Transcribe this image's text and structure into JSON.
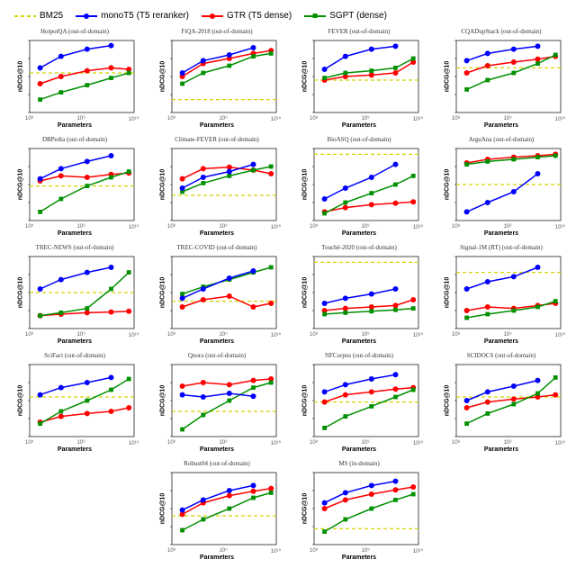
{
  "legend": [
    {
      "label": "BM25",
      "color": "#d4d400",
      "style": "dashed",
      "marker": false
    },
    {
      "label": "monoT5 (T5 reranker)",
      "color": "#0000ff",
      "style": "solid",
      "marker": true
    },
    {
      "label": "GTR (T5 dense)",
      "color": "#ff0000",
      "style": "solid",
      "marker": true
    },
    {
      "label": "SGPT (dense)",
      "color": "#009000",
      "style": "solid",
      "marker": "square"
    }
  ],
  "global": {
    "ylabel": "nDCG@10",
    "xlabel": "Parameters",
    "xticks": [
      "10⁸",
      "10⁹",
      "10¹⁰"
    ],
    "background": "#ffffff",
    "grid_color": "#e0e0e0",
    "line_width": 1.5,
    "marker_size": 3
  },
  "colors": {
    "bm25": "#d4d400",
    "monoT5": "#0000ff",
    "gtr": "#ff0000",
    "sgpt": "#009000"
  },
  "x_values": [
    0.1,
    0.3,
    0.55,
    0.78,
    0.95
  ],
  "panels": [
    {
      "title": "HotpotQA (out-of-domain)",
      "bm25_y": 0.55,
      "series": {
        "monoT5": [
          0.62,
          0.78,
          0.88,
          0.93,
          null
        ],
        "gtr": [
          0.4,
          0.5,
          0.58,
          0.62,
          0.6
        ],
        "sgpt": [
          0.18,
          0.28,
          0.38,
          0.48,
          0.55
        ]
      }
    },
    {
      "title": "FiQA-2018 (out-of-domain)",
      "bm25_y": 0.18,
      "series": {
        "monoT5": [
          0.55,
          0.72,
          0.8,
          0.9,
          null
        ],
        "gtr": [
          0.5,
          0.68,
          0.75,
          0.82,
          0.86
        ],
        "sgpt": [
          0.4,
          0.55,
          0.65,
          0.78,
          0.82
        ]
      }
    },
    {
      "title": "FEVER (out-of-domain)",
      "bm25_y": 0.45,
      "series": {
        "monoT5": [
          0.6,
          0.78,
          0.88,
          0.92,
          null
        ],
        "gtr": [
          0.45,
          0.5,
          0.52,
          0.55,
          0.7
        ],
        "sgpt": [
          0.48,
          0.55,
          0.58,
          0.62,
          0.75
        ]
      }
    },
    {
      "title": "CQADupStack (out-of-domain)",
      "bm25_y": 0.62,
      "series": {
        "monoT5": [
          0.72,
          0.82,
          0.88,
          0.92,
          null
        ],
        "gtr": [
          0.55,
          0.65,
          0.7,
          0.74,
          0.78
        ],
        "sgpt": [
          0.32,
          0.45,
          0.55,
          0.68,
          0.8
        ]
      }
    },
    {
      "title": "DBPedia (out-of-domain)",
      "bm25_y": 0.48,
      "series": {
        "monoT5": [
          0.58,
          0.72,
          0.82,
          0.9,
          null
        ],
        "gtr": [
          0.55,
          0.62,
          0.6,
          0.64,
          0.66
        ],
        "sgpt": [
          0.12,
          0.3,
          0.48,
          0.6,
          0.68
        ]
      }
    },
    {
      "title": "Climate-FEVER (out-of-domain)",
      "bm25_y": 0.35,
      "series": {
        "monoT5": [
          0.45,
          0.6,
          0.68,
          0.78,
          null
        ],
        "gtr": [
          0.58,
          0.72,
          0.74,
          0.7,
          0.65
        ],
        "sgpt": [
          0.4,
          0.52,
          0.62,
          0.7,
          0.75
        ]
      }
    },
    {
      "title": "BioASQ (out-of-domain)",
      "bm25_y": 0.92,
      "series": {
        "monoT5": [
          0.3,
          0.45,
          0.6,
          0.78,
          null
        ],
        "gtr": [
          0.12,
          0.18,
          0.22,
          0.24,
          0.26
        ],
        "sgpt": [
          0.1,
          0.25,
          0.38,
          0.5,
          0.62
        ]
      }
    },
    {
      "title": "ArguAna (out-of-domain)",
      "bm25_y": 0.5,
      "series": {
        "monoT5": [
          0.12,
          0.25,
          0.4,
          0.65,
          null
        ],
        "gtr": [
          0.8,
          0.85,
          0.88,
          0.9,
          0.92
        ],
        "sgpt": [
          0.78,
          0.82,
          0.85,
          0.88,
          0.9
        ]
      }
    },
    {
      "title": "TREC-NEWS (out-of-domain)",
      "bm25_y": 0.5,
      "series": {
        "monoT5": [
          0.55,
          0.68,
          0.78,
          0.85,
          null
        ],
        "gtr": [
          0.18,
          0.2,
          0.22,
          0.23,
          0.24
        ],
        "sgpt": [
          0.18,
          0.22,
          0.28,
          0.55,
          0.78
        ]
      }
    },
    {
      "title": "TREC-COVID (out-of-domain)",
      "bm25_y": 0.38,
      "series": {
        "monoT5": [
          0.42,
          0.55,
          0.7,
          0.8,
          null
        ],
        "gtr": [
          0.3,
          0.4,
          0.45,
          0.3,
          0.35
        ],
        "sgpt": [
          0.48,
          0.58,
          0.68,
          0.78,
          0.85
        ]
      }
    },
    {
      "title": "Touché-2020 (out-of-domain)",
      "bm25_y": 0.92,
      "series": {
        "monoT5": [
          0.35,
          0.42,
          0.48,
          0.55,
          null
        ],
        "gtr": [
          0.25,
          0.28,
          0.3,
          0.32,
          0.4
        ],
        "sgpt": [
          0.2,
          0.22,
          0.24,
          0.26,
          0.28
        ]
      }
    },
    {
      "title": "Signal-1M (RT) (out-of-domain)",
      "bm25_y": 0.78,
      "series": {
        "monoT5": [
          0.55,
          0.65,
          0.72,
          0.85,
          null
        ],
        "gtr": [
          0.25,
          0.3,
          0.28,
          0.32,
          0.35
        ],
        "sgpt": [
          0.15,
          0.2,
          0.25,
          0.3,
          0.38
        ]
      }
    },
    {
      "title": "SciFact (out-of-domain)",
      "bm25_y": 0.55,
      "series": {
        "monoT5": [
          0.58,
          0.68,
          0.75,
          0.82,
          null
        ],
        "gtr": [
          0.2,
          0.28,
          0.32,
          0.35,
          0.4
        ],
        "sgpt": [
          0.18,
          0.35,
          0.5,
          0.65,
          0.8
        ]
      }
    },
    {
      "title": "Quora (out-of-domain)",
      "bm25_y": 0.35,
      "series": {
        "monoT5": [
          0.58,
          0.55,
          0.6,
          0.56,
          null
        ],
        "gtr": [
          0.7,
          0.75,
          0.72,
          0.78,
          0.8
        ],
        "sgpt": [
          0.1,
          0.3,
          0.5,
          0.68,
          0.75
        ]
      }
    },
    {
      "title": "NFCorpus (out-of-domain)",
      "bm25_y": 0.48,
      "series": {
        "monoT5": [
          0.62,
          0.72,
          0.8,
          0.86,
          null
        ],
        "gtr": [
          0.48,
          0.58,
          0.62,
          0.66,
          0.68
        ],
        "sgpt": [
          0.12,
          0.28,
          0.42,
          0.55,
          0.65
        ]
      }
    },
    {
      "title": "SCIDOCS (out-of-domain)",
      "bm25_y": 0.55,
      "series": {
        "monoT5": [
          0.5,
          0.62,
          0.7,
          0.78,
          null
        ],
        "gtr": [
          0.4,
          0.48,
          0.52,
          0.55,
          0.58
        ],
        "sgpt": [
          0.18,
          0.32,
          0.45,
          0.6,
          0.82
        ]
      }
    },
    {
      "title": "Robust04 (out-of-domain)",
      "bm25_y": 0.4,
      "series": {
        "monoT5": [
          0.48,
          0.62,
          0.75,
          0.82,
          null
        ],
        "gtr": [
          0.42,
          0.58,
          0.68,
          0.74,
          0.78
        ],
        "sgpt": [
          0.2,
          0.35,
          0.5,
          0.65,
          0.72
        ]
      }
    },
    {
      "title": "MS (in-domain)",
      "bm25_y": 0.22,
      "series": {
        "monoT5": [
          0.58,
          0.72,
          0.82,
          0.88,
          null
        ],
        "gtr": [
          0.5,
          0.62,
          0.7,
          0.76,
          0.8
        ],
        "sgpt": [
          0.18,
          0.35,
          0.5,
          0.62,
          0.7
        ]
      }
    }
  ]
}
